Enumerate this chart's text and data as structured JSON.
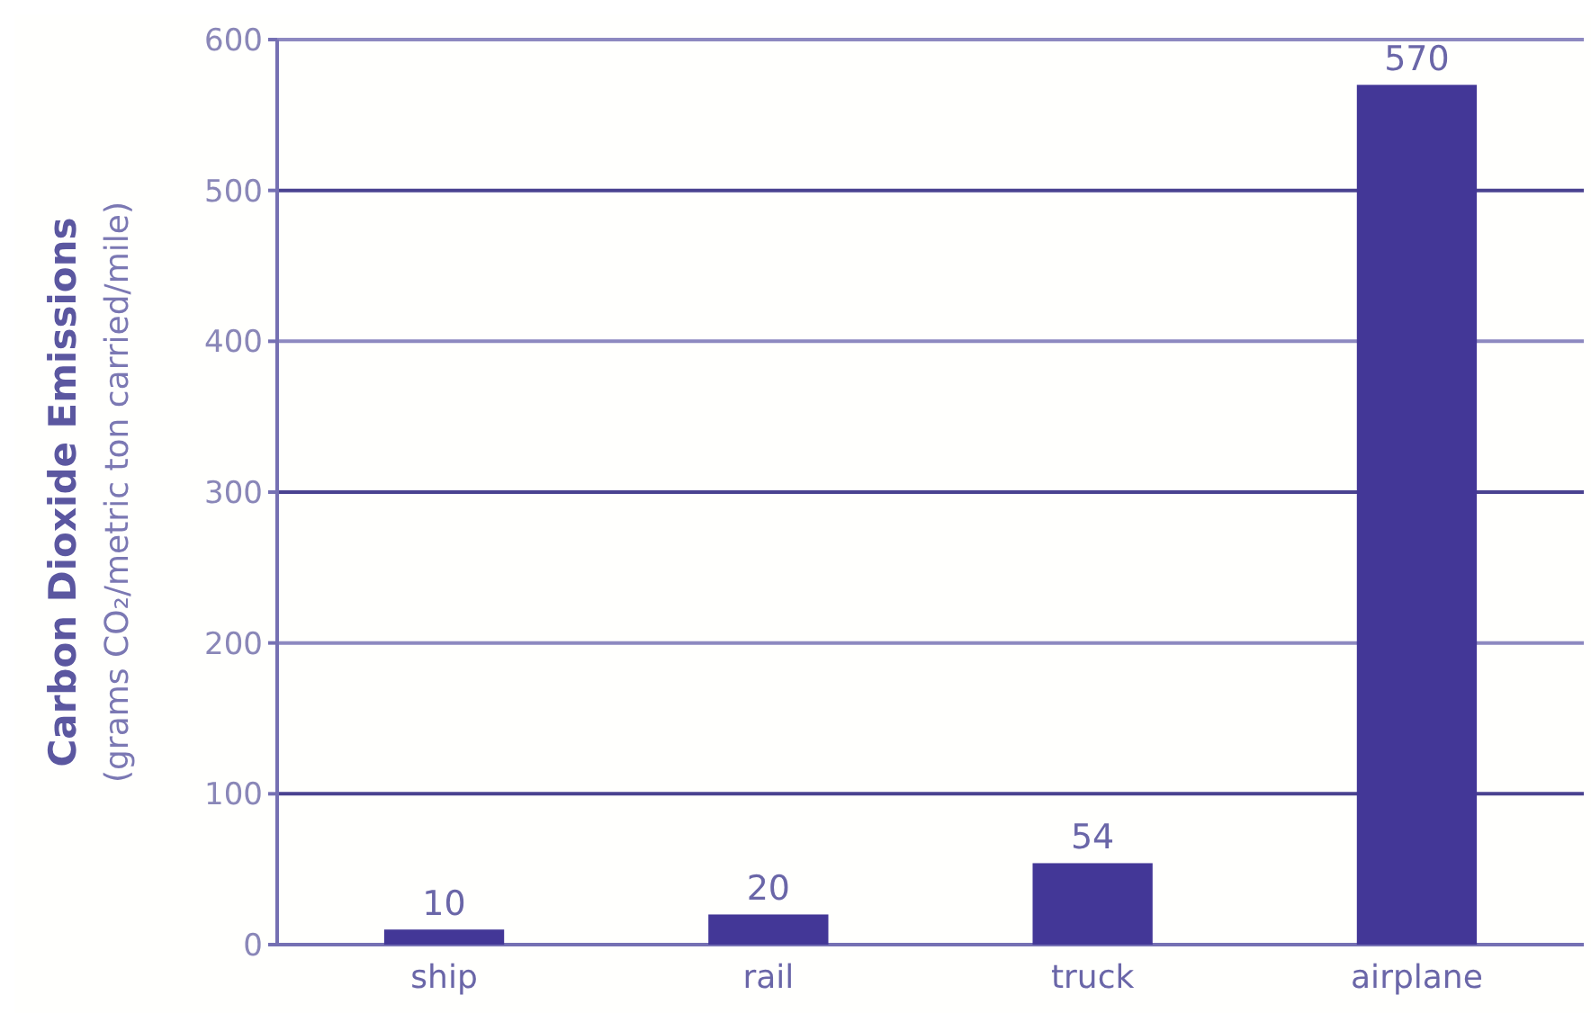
{
  "chart_data": {
    "type": "bar",
    "ylabel": "Carbon Dioxide Emissions\n(grams CO₂/metric ton carried/mile)",
    "categories": [
      "ship",
      "rail",
      "truck",
      "airplane"
    ],
    "values": [
      10,
      20,
      54,
      570
    ],
    "color": "#433797",
    "ylim": [
      0,
      600
    ],
    "yticks": [
      0,
      100,
      200,
      300,
      400,
      500,
      600
    ],
    "grid": "y",
    "data_labels": true
  }
}
